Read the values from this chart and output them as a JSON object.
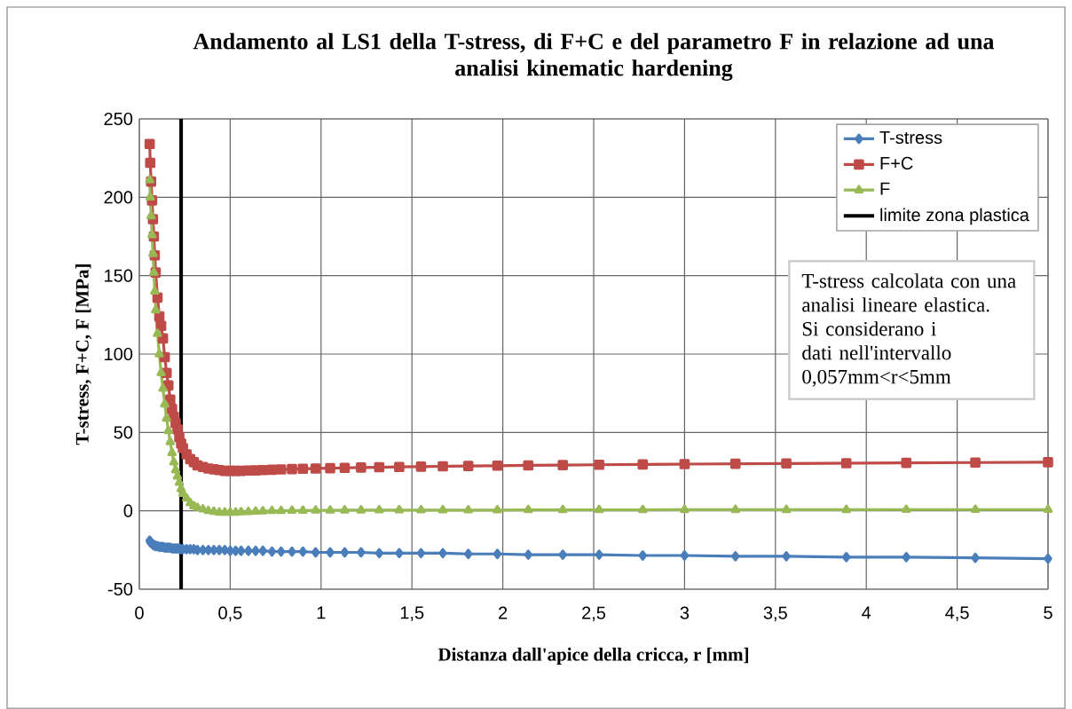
{
  "chart_data": {
    "type": "line",
    "title": "Andamento al LS1 della T-stress, di F+C e del parametro F in relazione ad una analisi kinematic hardening",
    "xlabel": "Distanza dall'apice della cricca, r [mm]",
    "ylabel": "T-stress, F+C, F [MPa]",
    "x": [
      0.057,
      0.06,
      0.065,
      0.07,
      0.075,
      0.08,
      0.085,
      0.09,
      0.1,
      0.11,
      0.12,
      0.13,
      0.14,
      0.15,
      0.16,
      0.17,
      0.18,
      0.19,
      0.2,
      0.21,
      0.22,
      0.23,
      0.24,
      0.26,
      0.28,
      0.3,
      0.32,
      0.35,
      0.38,
      0.41,
      0.44,
      0.47,
      0.5,
      0.53,
      0.56,
      0.6,
      0.64,
      0.68,
      0.73,
      0.78,
      0.84,
      0.9,
      0.97,
      1.05,
      1.13,
      1.22,
      1.32,
      1.43,
      1.55,
      1.67,
      1.81,
      1.97,
      2.14,
      2.33,
      2.53,
      2.77,
      3.0,
      3.28,
      3.56,
      3.89,
      4.22,
      4.6,
      5.0
    ],
    "series": [
      {
        "name": "T-stress",
        "color": "#4a7ebb",
        "marker": "diamond",
        "values": [
          -19,
          -20,
          -20.5,
          -21,
          -21.5,
          -22,
          -22,
          -22.5,
          -22.5,
          -23,
          -23,
          -23,
          -23.5,
          -23.5,
          -23.5,
          -23.5,
          -24,
          -24,
          -24,
          -24,
          -24,
          -24.5,
          -24.5,
          -24.5,
          -24.5,
          -24.5,
          -25,
          -25,
          -25,
          -25,
          -25,
          -25,
          -25.5,
          -25.5,
          -25.5,
          -25.5,
          -25.5,
          -25.5,
          -26,
          -26,
          -26,
          -26,
          -26.5,
          -26.5,
          -26.5,
          -26.5,
          -27,
          -27,
          -27,
          -27,
          -27.5,
          -27.5,
          -28,
          -28,
          -28,
          -28.5,
          -28.5,
          -29,
          -29,
          -29.5,
          -29.5,
          -30,
          -30.5
        ]
      },
      {
        "name": "F+C",
        "color": "#be4b48",
        "marker": "square",
        "values": [
          234,
          222,
          210,
          198,
          186,
          175,
          163,
          152,
          136,
          124,
          118,
          110,
          98,
          88,
          80,
          71,
          65,
          60,
          56,
          52,
          47,
          43,
          40,
          36,
          33,
          31,
          29,
          28,
          27,
          26.5,
          26,
          25.5,
          25.5,
          25.5,
          25.5,
          25.7,
          25.8,
          26,
          26.2,
          26.4,
          26.6,
          26.8,
          27,
          27.2,
          27.4,
          27.6,
          27.8,
          28,
          28.2,
          28.4,
          28.6,
          28.8,
          29,
          29.2,
          29.4,
          29.6,
          29.8,
          30,
          30.2,
          30.4,
          30.6,
          30.8,
          31
        ]
      },
      {
        "name": "F",
        "color": "#98b954",
        "marker": "triangle",
        "values": [
          211,
          200,
          188,
          176,
          164,
          152,
          140,
          128,
          113,
          100,
          88,
          78,
          68,
          59,
          51,
          44,
          37,
          31,
          26,
          22,
          18,
          14,
          11,
          8,
          5,
          3,
          2,
          1,
          0,
          -0.5,
          -1,
          -1,
          -1,
          -1,
          -0.8,
          -0.6,
          -0.4,
          -0.2,
          0,
          0,
          0.2,
          0.2,
          0.3,
          0.3,
          0.4,
          0.4,
          0.5,
          0.5,
          0.5,
          0.5,
          0.5,
          0.5,
          0.6,
          0.6,
          0.6,
          0.6,
          0.7,
          0.7,
          0.7,
          0.7,
          0.8,
          0.8,
          0.8
        ]
      },
      {
        "name": "limite zona plastica",
        "color": "#000000",
        "marker": "none",
        "x": [
          0.23,
          0.23
        ],
        "values": [
          -50,
          250
        ]
      }
    ],
    "annotations": [
      "T-stress calcolata con una analisi lineare elastica.",
      "Si considerano i dati nell'intervallo 0,057mm<r<5mm"
    ],
    "xlim": [
      0,
      5
    ],
    "xticks": [
      0,
      {
        "value": 0.5,
        "label": "0,5"
      },
      1,
      {
        "value": 1.5,
        "label": "1,5"
      },
      2,
      {
        "value": 2.5,
        "label": "2,5"
      },
      3,
      {
        "value": 3.5,
        "label": "3,5"
      },
      4,
      {
        "value": 4.5,
        "label": "4,5"
      },
      5
    ],
    "ylim": [
      -50,
      250
    ],
    "yticks": [
      -50,
      0,
      50,
      100,
      150,
      200,
      250
    ],
    "grid": true,
    "legend": "top right",
    "line_style": "solid"
  }
}
